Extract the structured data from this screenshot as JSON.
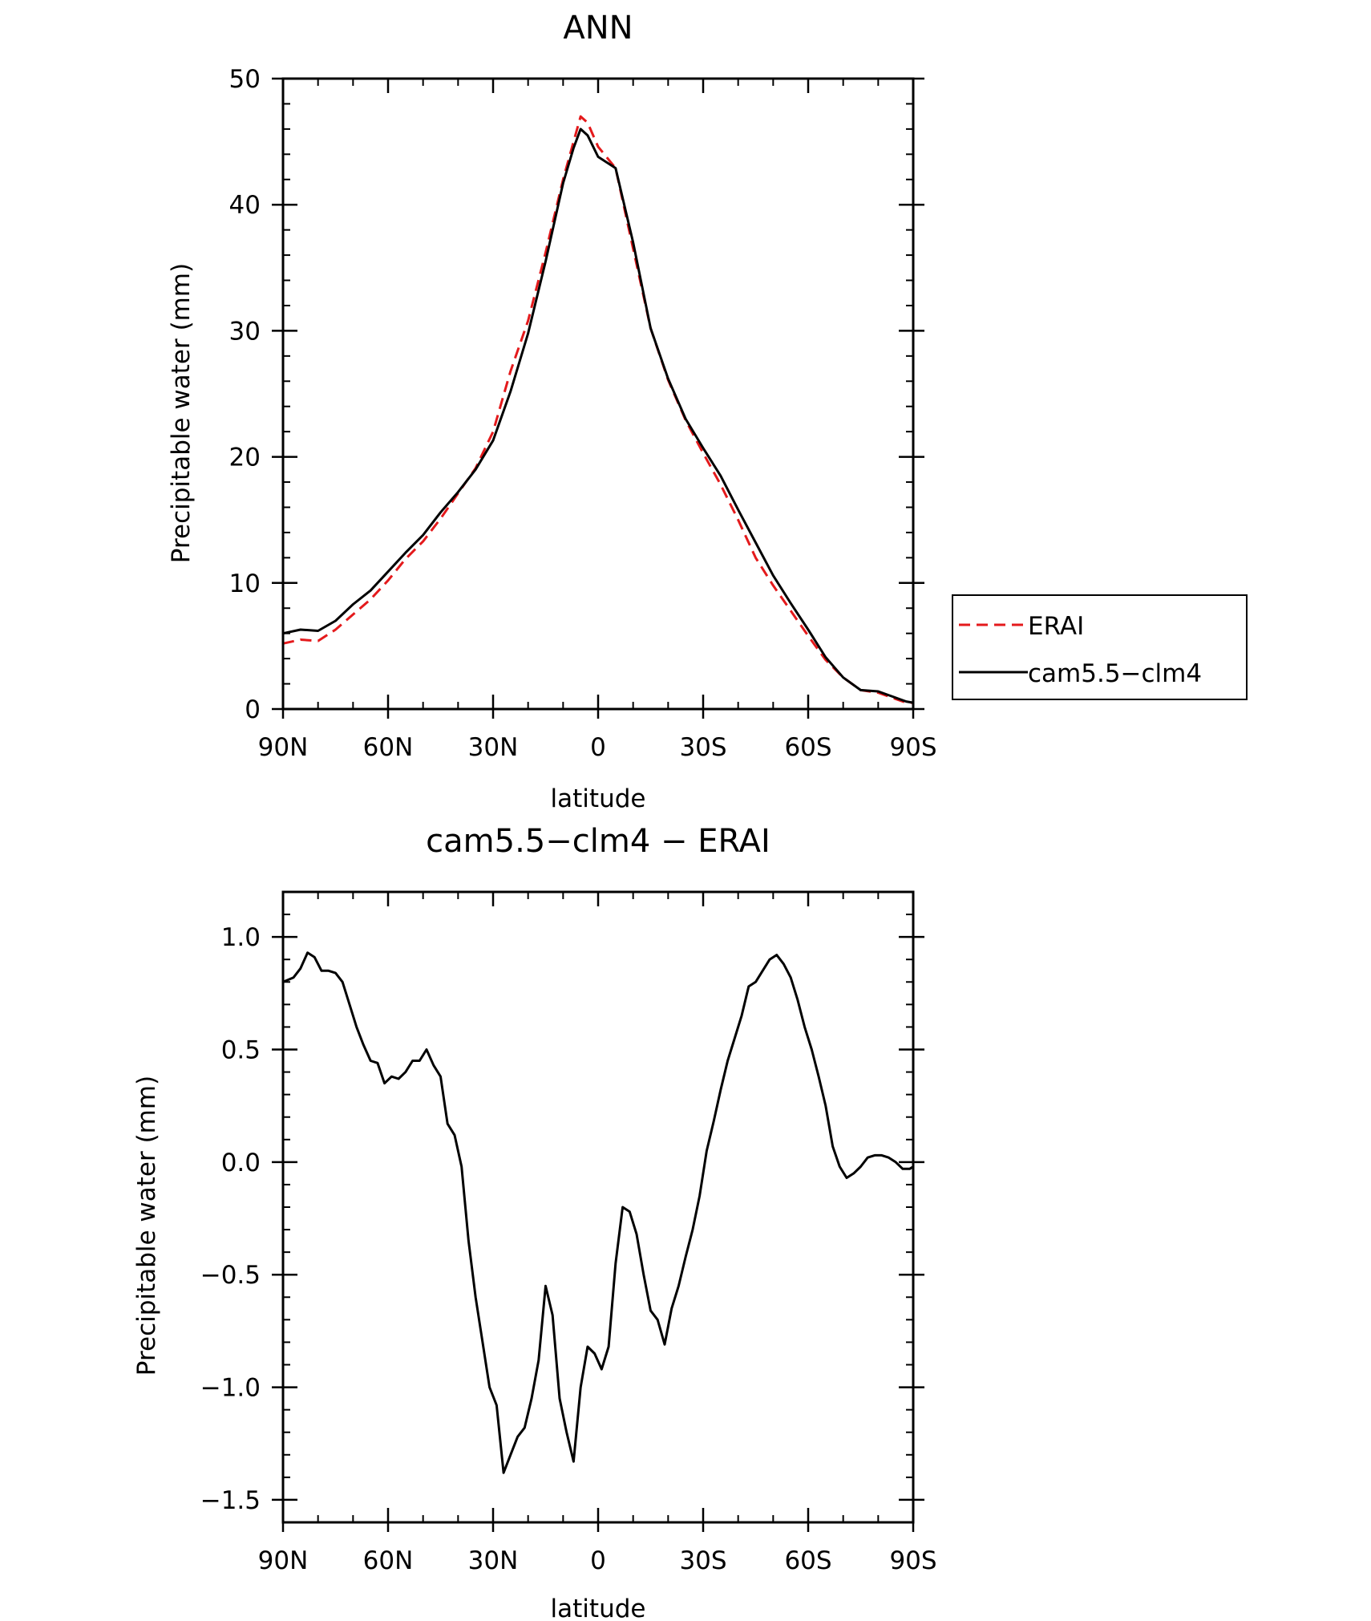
{
  "chart_data": [
    {
      "type": "line",
      "title": "ANN",
      "xlabel": "latitude",
      "ylabel": "Precipitable water (mm)",
      "xlim": [
        -90,
        90
      ],
      "ylim": [
        0,
        50
      ],
      "x_ticks": [
        -90,
        -60,
        -30,
        0,
        30,
        60,
        90
      ],
      "x_tick_labels": [
        "90N",
        "60N",
        "30N",
        "0",
        "30S",
        "60S",
        "90S"
      ],
      "y_ticks": [
        0,
        10,
        20,
        30,
        40,
        50
      ],
      "y_tick_labels": [
        "0",
        "10",
        "20",
        "30",
        "40",
        "50"
      ],
      "grid": false,
      "legend": {
        "position": "right",
        "entries": [
          "ERAI",
          "cam5.5−clm4"
        ]
      },
      "x": [
        -90,
        -85,
        -80,
        -75,
        -70,
        -65,
        -60,
        -55,
        -50,
        -45,
        -40,
        -35,
        -30,
        -25,
        -20,
        -15,
        -10,
        -7,
        -5,
        -3,
        0,
        5,
        10,
        15,
        20,
        25,
        30,
        35,
        40,
        45,
        50,
        55,
        60,
        65,
        70,
        75,
        80,
        85,
        88,
        90
      ],
      "series": [
        {
          "name": "ERAI",
          "color": "#e41a1c",
          "dash": "dashed",
          "values": [
            5.2,
            5.5,
            5.4,
            6.3,
            7.5,
            8.7,
            10.2,
            11.9,
            13.3,
            15.1,
            17.1,
            19.1,
            22.0,
            26.8,
            30.8,
            36.2,
            42.0,
            45.0,
            47.0,
            46.5,
            44.6,
            42.9,
            36.5,
            30.2,
            26.1,
            22.9,
            20.3,
            17.8,
            15.0,
            12.0,
            9.8,
            7.8,
            5.8,
            3.9,
            2.5,
            1.5,
            1.3,
            0.8,
            0.5,
            0.5
          ]
        },
        {
          "name": "cam5.5−clm4",
          "color": "#000000",
          "dash": "solid",
          "values": [
            6.0,
            6.3,
            6.2,
            7.0,
            8.3,
            9.4,
            10.9,
            12.4,
            13.8,
            15.6,
            17.2,
            19.0,
            21.3,
            25.2,
            29.8,
            35.5,
            41.7,
            44.5,
            46.0,
            45.5,
            43.8,
            42.9,
            37.0,
            30.2,
            26.2,
            23.0,
            20.7,
            18.5,
            15.8,
            13.2,
            10.6,
            8.4,
            6.3,
            4.1,
            2.5,
            1.5,
            1.4,
            0.9,
            0.6,
            0.5
          ]
        }
      ]
    },
    {
      "type": "line",
      "title": "cam5.5−clm4 − ERAI",
      "xlabel": "latitude",
      "ylabel": "Precipitable water (mm)",
      "xlim": [
        -90,
        90
      ],
      "ylim": [
        -1.6,
        1.2
      ],
      "x_ticks": [
        -90,
        -60,
        -30,
        0,
        30,
        60,
        90
      ],
      "x_tick_labels": [
        "90N",
        "60N",
        "30N",
        "0",
        "30S",
        "60S",
        "90S"
      ],
      "y_ticks": [
        -1.5,
        -1.0,
        -0.5,
        0.0,
        0.5,
        1.0
      ],
      "y_tick_labels": [
        "−1.5",
        "−1.0",
        "−0.5",
        "0.0",
        "0.5",
        "1.0"
      ],
      "grid": false,
      "x": [
        -90,
        -87,
        -85,
        -83,
        -81,
        -79,
        -77,
        -75,
        -73,
        -71,
        -69,
        -67,
        -65,
        -63,
        -61,
        -59,
        -57,
        -55,
        -53,
        -51,
        -49,
        -47,
        -45,
        -43,
        -41,
        -39,
        -37,
        -35,
        -33,
        -31,
        -29,
        -27,
        -25,
        -23,
        -21,
        -19,
        -17,
        -15,
        -13,
        -11,
        -9,
        -7,
        -5,
        -3,
        -1,
        1,
        3,
        5,
        7,
        9,
        11,
        13,
        15,
        17,
        19,
        21,
        23,
        25,
        27,
        29,
        31,
        33,
        35,
        37,
        39,
        41,
        43,
        45,
        47,
        49,
        51,
        53,
        55,
        57,
        59,
        61,
        63,
        65,
        67,
        69,
        71,
        73,
        75,
        77,
        79,
        81,
        83,
        85,
        87,
        89,
        90
      ],
      "series": [
        {
          "name": "",
          "color": "#000000",
          "dash": "solid",
          "values": [
            0.8,
            0.82,
            0.86,
            0.93,
            0.91,
            0.85,
            0.85,
            0.84,
            0.8,
            0.7,
            0.6,
            0.52,
            0.45,
            0.44,
            0.35,
            0.38,
            0.37,
            0.4,
            0.45,
            0.45,
            0.5,
            0.43,
            0.38,
            0.17,
            0.12,
            -0.02,
            -0.35,
            -0.6,
            -0.8,
            -1.0,
            -1.08,
            -1.38,
            -1.3,
            -1.22,
            -1.18,
            -1.05,
            -0.88,
            -0.55,
            -0.68,
            -1.05,
            -1.2,
            -1.33,
            -1.0,
            -0.82,
            -0.85,
            -0.92,
            -0.82,
            -0.45,
            -0.2,
            -0.22,
            -0.32,
            -0.5,
            -0.66,
            -0.7,
            -0.81,
            -0.65,
            -0.55,
            -0.42,
            -0.3,
            -0.15,
            0.05,
            0.18,
            0.32,
            0.45,
            0.55,
            0.65,
            0.78,
            0.8,
            0.85,
            0.9,
            0.92,
            0.88,
            0.82,
            0.72,
            0.6,
            0.5,
            0.38,
            0.25,
            0.07,
            -0.02,
            -0.07,
            -0.05,
            -0.02,
            0.02,
            0.03,
            0.03,
            0.02,
            0.0,
            -0.03,
            -0.03,
            -0.02
          ]
        }
      ]
    }
  ]
}
